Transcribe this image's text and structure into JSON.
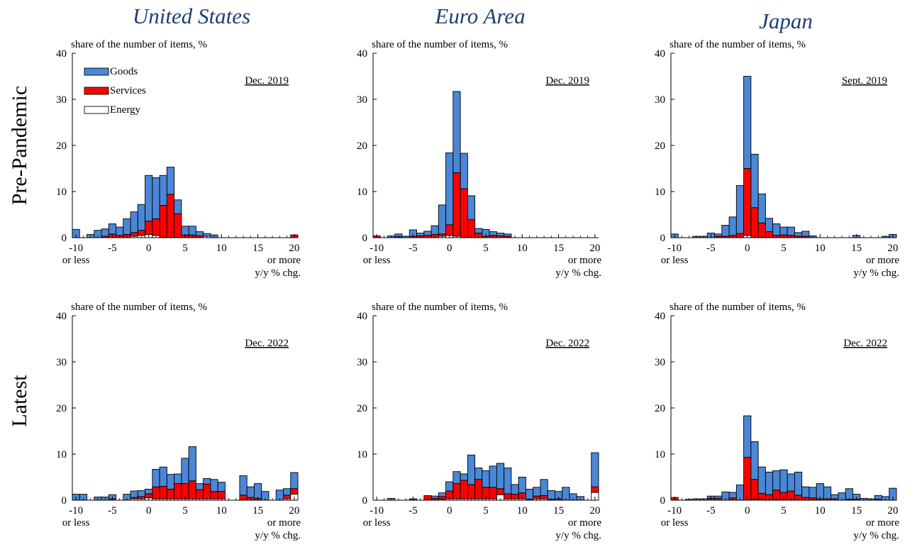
{
  "figure": {
    "column_titles": [
      "United States",
      "Euro Area",
      "Japan"
    ],
    "row_labels": [
      "Pre-Pandemic",
      "Latest"
    ],
    "legend": [
      {
        "name": "Goods",
        "color": "#4a87d6"
      },
      {
        "name": "Services",
        "color": "#ff0000"
      },
      {
        "name": "Energy",
        "color": "#ffffff"
      }
    ],
    "y_axis_label": "share of the number of items, %",
    "x_axis_label": "y/y % chg.",
    "x_tick_labels": [
      "-10",
      "-5",
      "0",
      "5",
      "10",
      "15",
      "20"
    ],
    "x_low_extra": "or less",
    "x_high_extra": "or more",
    "y_tick_labels": [
      "0",
      "10",
      "20",
      "30",
      "40"
    ]
  },
  "chart_data": [
    {
      "type": "bar",
      "stacked": true,
      "country": "United States",
      "period": "Dec. 2019",
      "x": [
        -10,
        -9,
        -8,
        -7,
        -6,
        -5,
        -4,
        -3,
        -2,
        -1,
        0,
        1,
        2,
        3,
        4,
        5,
        6,
        7,
        8,
        9,
        10,
        11,
        12,
        13,
        14,
        15,
        16,
        17,
        18,
        19,
        20
      ],
      "series": [
        {
          "name": "Energy",
          "values": [
            0,
            0,
            0,
            0,
            0,
            0,
            0,
            0,
            0.3,
            0.5,
            0.7,
            0.5,
            0,
            0,
            0,
            0,
            0,
            0,
            0.3,
            0,
            0,
            0,
            0,
            0,
            0,
            0,
            0,
            0,
            0,
            0,
            0
          ]
        },
        {
          "name": "Services",
          "values": [
            0,
            0,
            0,
            0,
            0.3,
            0.8,
            0.5,
            0.7,
            0.8,
            1.1,
            2.9,
            3.6,
            7.0,
            9.4,
            5.2,
            0.6,
            0.6,
            0.4,
            0,
            0,
            0,
            0,
            0,
            0,
            0,
            0,
            0,
            0,
            0,
            0,
            0.6
          ]
        },
        {
          "name": "Goods",
          "values": [
            1.8,
            0,
            0.7,
            1.6,
            1.6,
            2.2,
            1.8,
            3.4,
            4.5,
            5.6,
            9.9,
            8.9,
            6.5,
            5.9,
            3.0,
            1.9,
            1.9,
            0.9,
            0.6,
            0.6,
            0,
            0,
            0,
            0,
            0,
            0,
            0,
            0,
            0,
            0,
            0
          ]
        }
      ],
      "xlim": [
        -10,
        20
      ],
      "ylim": [
        0,
        40
      ]
    },
    {
      "type": "bar",
      "stacked": true,
      "country": "Euro Area",
      "period": "Dec. 2019",
      "x": [
        -10,
        -9,
        -8,
        -7,
        -6,
        -5,
        -4,
        -3,
        -2,
        -1,
        0,
        1,
        2,
        3,
        4,
        5,
        6,
        7,
        8,
        9,
        10,
        11,
        12,
        13,
        14,
        15,
        16,
        17,
        18,
        19,
        20
      ],
      "series": [
        {
          "name": "Energy",
          "values": [
            0,
            0,
            0,
            0,
            0,
            0,
            0,
            0,
            0,
            0.3,
            0.5,
            0.3,
            0,
            0,
            0,
            0,
            0,
            0,
            0,
            0,
            0,
            0,
            0,
            0,
            0,
            0,
            0,
            0,
            0,
            0,
            0
          ]
        },
        {
          "name": "Services",
          "values": [
            0.4,
            0,
            0,
            0.2,
            0,
            0.3,
            0.4,
            0.5,
            0.7,
            0.5,
            2.3,
            13.8,
            10.6,
            3.9,
            1.0,
            0.3,
            0.5,
            0.4,
            0.3,
            0,
            0,
            0,
            0,
            0,
            0,
            0,
            0,
            0,
            0,
            0,
            0
          ]
        },
        {
          "name": "Goods",
          "values": [
            0,
            0,
            0.4,
            0.6,
            0.3,
            1.4,
            0.6,
            0.9,
            1.9,
            6.3,
            15.6,
            17.6,
            7.7,
            5.2,
            1.0,
            1.5,
            0.8,
            0.6,
            0.5,
            0,
            0,
            0,
            0,
            0,
            0,
            0,
            0,
            0,
            0,
            0,
            0
          ]
        }
      ],
      "xlim": [
        -10,
        20
      ],
      "ylim": [
        0,
        40
      ]
    },
    {
      "type": "bar",
      "stacked": true,
      "country": "Japan",
      "period": "Sept. 2019",
      "x": [
        -10,
        -9,
        -8,
        -7,
        -6,
        -5,
        -4,
        -3,
        -2,
        -1,
        0,
        1,
        2,
        3,
        4,
        5,
        6,
        7,
        8,
        9,
        10,
        11,
        12,
        13,
        14,
        15,
        16,
        17,
        18,
        19,
        20
      ],
      "series": [
        {
          "name": "Energy",
          "values": [
            0,
            0,
            0,
            0,
            0,
            0,
            0,
            0,
            0,
            0,
            0.5,
            0,
            0,
            0,
            0,
            0,
            0,
            0,
            0,
            0,
            0,
            0,
            0,
            0,
            0,
            0,
            0,
            0,
            0,
            0,
            0
          ]
        },
        {
          "name": "Services",
          "values": [
            0,
            0,
            0,
            0,
            0,
            0,
            0.3,
            0.3,
            0.5,
            0.9,
            14.5,
            6.5,
            3.2,
            1.3,
            0.5,
            0.6,
            0.5,
            0.3,
            0.3,
            0,
            0,
            0,
            0,
            0,
            0,
            0,
            0,
            0,
            0,
            0,
            0
          ]
        },
        {
          "name": "Goods",
          "values": [
            0.8,
            0,
            0,
            0.3,
            0.3,
            1.0,
            0.5,
            2.4,
            4.0,
            10.4,
            20.0,
            11.6,
            6.3,
            2.9,
            2.5,
            1.7,
            1.8,
            0.8,
            1.1,
            0.4,
            0,
            0,
            0,
            0,
            0,
            0.5,
            0,
            0,
            0,
            0.3,
            0.7
          ]
        }
      ],
      "xlim": [
        -10,
        20
      ],
      "ylim": [
        0,
        40
      ]
    },
    {
      "type": "bar",
      "stacked": true,
      "country": "United States",
      "period": "Dec. 2022",
      "x": [
        -10,
        -9,
        -8,
        -7,
        -6,
        -5,
        -4,
        -3,
        -2,
        -1,
        0,
        1,
        2,
        3,
        4,
        5,
        6,
        7,
        8,
        9,
        10,
        11,
        12,
        13,
        14,
        15,
        16,
        17,
        18,
        19,
        20
      ],
      "series": [
        {
          "name": "Energy",
          "values": [
            0,
            0,
            0,
            0,
            0,
            0,
            0,
            0,
            0.3,
            0.3,
            0.5,
            0.3,
            0.3,
            0.3,
            0.3,
            0.3,
            0.3,
            0.3,
            0.3,
            0.3,
            0.3,
            0,
            0,
            0,
            0,
            0,
            0,
            0,
            0,
            0.3,
            1.3
          ]
        },
        {
          "name": "Services",
          "values": [
            0,
            0,
            0,
            0,
            0,
            0.3,
            0,
            0,
            0.3,
            0.5,
            0.9,
            2.6,
            2.7,
            2.1,
            3.3,
            3.3,
            3.9,
            2.0,
            3.2,
            1.6,
            1.6,
            0,
            0,
            1.1,
            0.6,
            0.4,
            0,
            0,
            0,
            0.8,
            1.2
          ]
        },
        {
          "name": "Goods",
          "values": [
            1.3,
            1.3,
            0,
            0.7,
            0.7,
            0.9,
            0,
            1.3,
            1.4,
            1.3,
            1.0,
            3.8,
            4.2,
            3.2,
            2.1,
            5.5,
            7.4,
            1.3,
            1.2,
            2.6,
            2.0,
            0,
            0,
            4.2,
            2.3,
            3.2,
            1.9,
            0,
            2.2,
            1.4,
            3.5
          ]
        }
      ],
      "xlim": [
        -10,
        20
      ],
      "ylim": [
        0,
        40
      ]
    },
    {
      "type": "bar",
      "stacked": true,
      "country": "Euro Area",
      "period": "Dec. 2022",
      "x": [
        -10,
        -9,
        -8,
        -7,
        -6,
        -5,
        -4,
        -3,
        -2,
        -1,
        0,
        1,
        2,
        3,
        4,
        5,
        6,
        7,
        8,
        9,
        10,
        11,
        12,
        13,
        14,
        15,
        16,
        17,
        18,
        19,
        20
      ],
      "series": [
        {
          "name": "Energy",
          "values": [
            0,
            0,
            0,
            0,
            0,
            0,
            0,
            0,
            0,
            0.2,
            0.3,
            0.3,
            0.3,
            0.3,
            0.3,
            0.3,
            0.3,
            1.2,
            0.3,
            0.3,
            0.3,
            0,
            0.3,
            0.3,
            0,
            0,
            0,
            0,
            0,
            0,
            1.7
          ]
        },
        {
          "name": "Services",
          "values": [
            0,
            0,
            0,
            0,
            0,
            0.3,
            0,
            1.0,
            0.4,
            0.6,
            1.7,
            3.3,
            4.0,
            3.1,
            4.2,
            2.5,
            2.5,
            1.3,
            1.1,
            1.0,
            1.3,
            0.2,
            0.6,
            0.7,
            0.2,
            0.3,
            0,
            0,
            0,
            0,
            1.2
          ]
        },
        {
          "name": "Goods",
          "values": [
            0,
            0,
            0.4,
            0,
            0,
            0,
            0,
            0,
            0.5,
            0.8,
            2.0,
            2.6,
            1.4,
            6.4,
            2.5,
            3.6,
            4.6,
            5.5,
            5.6,
            2.1,
            3.4,
            2.2,
            1.9,
            3.5,
            1.9,
            1.6,
            2.8,
            1.4,
            0.8,
            0,
            7.4
          ]
        }
      ],
      "xlim": [
        -10,
        20
      ],
      "ylim": [
        0,
        40
      ]
    },
    {
      "type": "bar",
      "stacked": true,
      "country": "Japan",
      "period": "Dec. 2022",
      "x": [
        -10,
        -9,
        -8,
        -7,
        -6,
        -5,
        -4,
        -3,
        -2,
        -1,
        0,
        1,
        2,
        3,
        4,
        5,
        6,
        7,
        8,
        9,
        10,
        11,
        12,
        13,
        14,
        15,
        16,
        17,
        18,
        19,
        20
      ],
      "series": [
        {
          "name": "Energy",
          "values": [
            0,
            0,
            0,
            0,
            0,
            0,
            0,
            0,
            0,
            0,
            0,
            0.2,
            0,
            0,
            0,
            0,
            0,
            0,
            0,
            0,
            0,
            0,
            0,
            0,
            0,
            0,
            0,
            0,
            0,
            0,
            0
          ]
        },
        {
          "name": "Services",
          "values": [
            0.6,
            0,
            0,
            0,
            0,
            0.4,
            0.4,
            0,
            0.5,
            0,
            9.3,
            4.3,
            1.5,
            1.2,
            2.2,
            1.7,
            2.0,
            1.1,
            0.6,
            0.5,
            0.3,
            0.3,
            0.3,
            0,
            0.2,
            0.2,
            0,
            0,
            0.2,
            0,
            0
          ]
        },
        {
          "name": "Goods",
          "values": [
            0,
            0,
            0.2,
            0.3,
            0.3,
            0.5,
            0.5,
            1.8,
            1.2,
            3.3,
            9.0,
            8.2,
            5.7,
            4.9,
            4.2,
            4.9,
            3.7,
            5.0,
            2.3,
            2.3,
            3.3,
            2.6,
            0.9,
            1.6,
            2.3,
            1.1,
            0.4,
            0.3,
            0.8,
            0.8,
            2.6
          ]
        }
      ],
      "xlim": [
        -10,
        20
      ],
      "ylim": [
        0,
        40
      ]
    }
  ]
}
